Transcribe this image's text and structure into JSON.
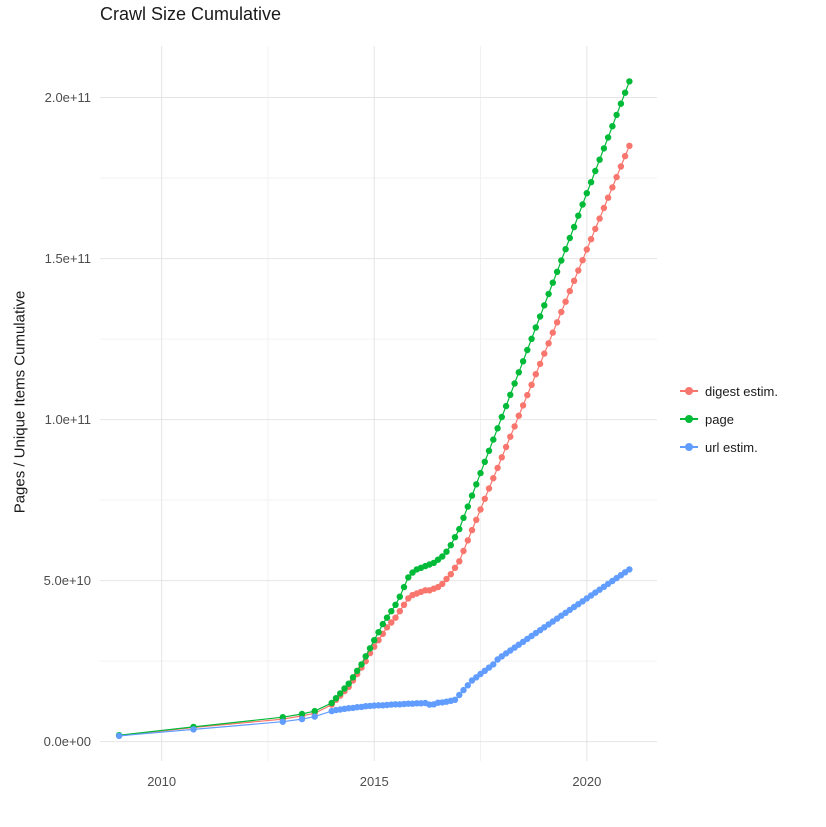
{
  "chart_data": {
    "type": "line",
    "show_points": true,
    "title": "Crawl Size Cumulative",
    "xlabel": "",
    "ylabel": "Pages / Unique Items Cumulative",
    "legend_position": "right",
    "grid": true,
    "grid_major_color": "#e4e4e4",
    "grid_minor_color": "#f2f2f2",
    "x_ticks": [
      2010,
      2015,
      2020
    ],
    "x_tick_labels": [
      "2010",
      "2015",
      "2020"
    ],
    "x_minor": [
      2012.5,
      2017.5
    ],
    "y_ticks": [
      0,
      50000000000.0,
      100000000000.0,
      150000000000.0,
      200000000000.0
    ],
    "y_tick_labels": [
      "0.0e+00",
      "5.0e+10",
      "1.0e+11",
      "1.5e+11",
      "2.0e+11"
    ],
    "y_minor": [
      25000000000.0,
      75000000000.0,
      125000000000.0,
      175000000000.0
    ],
    "xlim": [
      2008.55,
      2021.65
    ],
    "ylim": [
      -6000000000.0,
      216000000000.0
    ],
    "value_unit": 1000000000,
    "x": [
      2009,
      2010.75,
      2012.85,
      2013.3,
      2013.6,
      2014,
      2014.1,
      2014.2,
      2014.3,
      2014.4,
      2014.5,
      2014.6,
      2014.7,
      2014.8,
      2014.9,
      2015,
      2015.1,
      2015.2,
      2015.3,
      2015.4,
      2015.5,
      2015.6,
      2015.7,
      2015.8,
      2015.9,
      2016,
      2016.1,
      2016.2,
      2016.3,
      2016.4,
      2016.5,
      2016.6,
      2016.7,
      2016.8,
      2016.9,
      2017,
      2017.1,
      2017.2,
      2017.3,
      2017.4,
      2017.5,
      2017.6,
      2017.7,
      2017.8,
      2017.9,
      2018,
      2018.1,
      2018.2,
      2018.3,
      2018.4,
      2018.5,
      2018.6,
      2018.7,
      2018.8,
      2018.9,
      2019,
      2019.1,
      2019.2,
      2019.3,
      2019.4,
      2019.5,
      2019.6,
      2019.7,
      2019.8,
      2019.9,
      2020,
      2020.1,
      2020.2,
      2020.3,
      2020.4,
      2020.5,
      2020.6,
      2020.7,
      2020.8,
      2020.9,
      2021
    ],
    "series": [
      {
        "name": "digest estim.",
        "color": "#F8766D",
        "values": [
          1.9,
          4.4,
          7,
          8,
          8.8,
          11.5,
          13,
          14.3,
          15.7,
          17,
          19,
          21,
          23,
          25,
          27.5,
          29.5,
          31.5,
          33.5,
          35.5,
          37,
          38.5,
          40.5,
          42.5,
          44.5,
          45.5,
          46,
          46.5,
          47,
          47,
          47.5,
          48,
          49,
          50.5,
          52,
          54,
          56,
          59.2,
          62.5,
          65.7,
          68.9,
          72.1,
          75.4,
          78.6,
          81.8,
          85,
          88.3,
          91.5,
          94.7,
          97.9,
          101.2,
          104.4,
          107.6,
          110.8,
          114.1,
          117.3,
          120.5,
          123.7,
          127,
          130.2,
          133.4,
          136.6,
          139.9,
          143.1,
          146.3,
          149.5,
          152.8,
          156,
          159.2,
          162.4,
          165.7,
          168.9,
          172.1,
          175.3,
          178.6,
          181.8,
          185
        ]
      },
      {
        "name": "page",
        "color": "#00BA38",
        "values": [
          2,
          4.6,
          7.6,
          8.6,
          9.5,
          12,
          13.5,
          15,
          16.5,
          18,
          20,
          22,
          24,
          26.5,
          29,
          31.5,
          34,
          36.5,
          38.5,
          40.5,
          42.5,
          45,
          48,
          51,
          52.5,
          53.5,
          54,
          54.5,
          55,
          55.5,
          56.5,
          57.5,
          59,
          61,
          63.5,
          66,
          69.5,
          73,
          76.4,
          79.9,
          83.4,
          86.9,
          90.3,
          93.8,
          97.3,
          100.8,
          104.2,
          107.7,
          111.2,
          114.7,
          118.1,
          121.6,
          125.1,
          128.6,
          132,
          135.5,
          139,
          142.5,
          145.9,
          149.4,
          152.9,
          156.4,
          159.8,
          163.3,
          166.8,
          170.3,
          173.7,
          177.2,
          180.7,
          184.2,
          187.6,
          191.1,
          194.6,
          198.1,
          201.5,
          205
        ]
      },
      {
        "name": "url estim.",
        "color": "#619CFF",
        "values": [
          1.8,
          3.8,
          6.2,
          7,
          7.8,
          9.5,
          9.8,
          10,
          10.2,
          10.4,
          10.5,
          10.7,
          10.8,
          11,
          11.1,
          11.2,
          11.3,
          11.3,
          11.4,
          11.5,
          11.6,
          11.6,
          11.7,
          11.8,
          11.8,
          11.9,
          11.9,
          12,
          11.5,
          11.6,
          12.1,
          12.2,
          12.4,
          12.7,
          13,
          14.5,
          16,
          17.5,
          19,
          20,
          21,
          22,
          23,
          24,
          25.5,
          26.5,
          27.4,
          28.3,
          29.2,
          30.1,
          31,
          31.9,
          32.8,
          33.7,
          34.6,
          35.5,
          36.4,
          37.3,
          38.2,
          39.1,
          40,
          40.9,
          41.8,
          42.7,
          43.6,
          44.5,
          45.4,
          46.3,
          47.2,
          48.1,
          49,
          49.9,
          50.8,
          51.7,
          52.6,
          53.5
        ]
      }
    ]
  }
}
